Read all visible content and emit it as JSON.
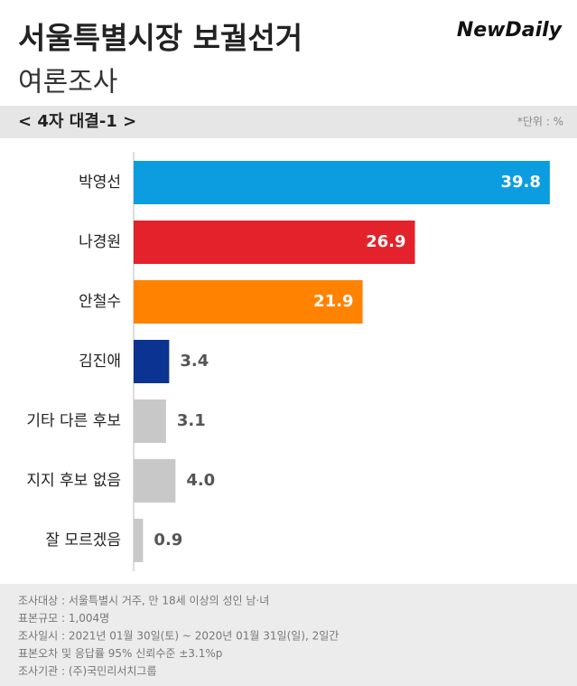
{
  "chart_data": {
    "type": "barh",
    "title": "서울특별시장 보궐선거",
    "subtitle": "여론조사",
    "brand": "NewDaily",
    "section": "< 4자 대결-1 >",
    "unit_note": "*단위 : %",
    "categories": [
      "박영선",
      "나경원",
      "안철수",
      "김진애",
      "기타 다른 후보",
      "지지 후보 없음",
      "잘 모르겠음"
    ],
    "values": [
      39.8,
      26.9,
      21.9,
      3.4,
      3.1,
      4.0,
      0.9
    ],
    "value_labels": [
      "39.8",
      "26.9",
      "21.9",
      "3.4",
      "3.1",
      "4.0",
      "0.9"
    ],
    "colors": [
      "#0b9de0",
      "#e3222b",
      "#ff8200",
      "#0b3391",
      "#c8c8c8",
      "#c8c8c8",
      "#c8c8c8"
    ],
    "notes": [
      "조사대상 : 서울특별시 거주, 만 18세 이상의 성인 남·녀",
      "표본규모 : 1,004명",
      "조사일시 : 2021년 01월 30일(토) ~ 2020년 01월 31일(일), 2일간",
      "표본오차 및 응답률 95% 신뢰수준 ±3.1%p",
      "조사기관 : (주)국민리서치그룹"
    ]
  }
}
